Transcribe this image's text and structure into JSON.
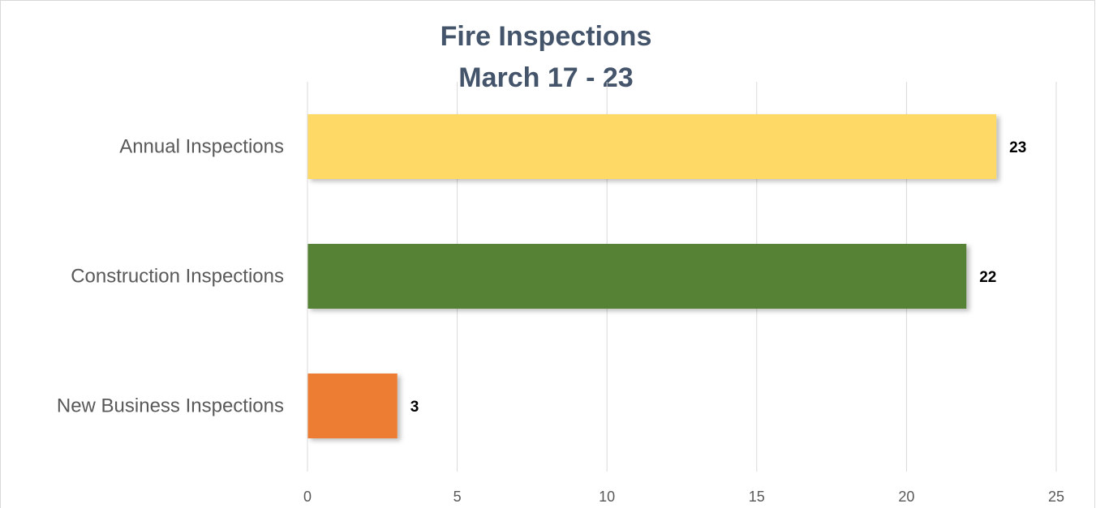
{
  "chart_data": {
    "type": "bar",
    "title": "Fire Inspections",
    "subtitle": "March 17 - 23",
    "categories": [
      "Annual Inspections",
      "Construction Inspections",
      "New Business Inspections"
    ],
    "values": [
      23,
      22,
      3
    ],
    "colors": [
      "#ffd966",
      "#548235",
      "#ed7d31"
    ],
    "xlim": [
      0,
      25
    ],
    "xticks": [
      0,
      5,
      10,
      15,
      20,
      25
    ],
    "grid": true
  }
}
